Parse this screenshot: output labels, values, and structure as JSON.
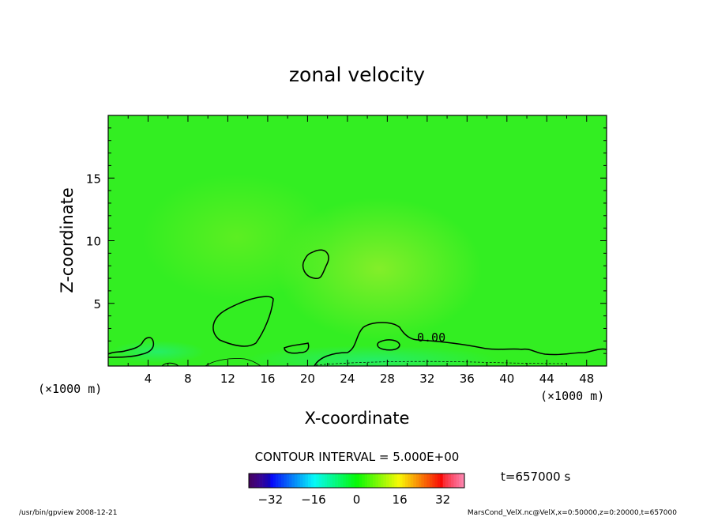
{
  "chart_data": {
    "type": "heatmap",
    "title": "zonal velocity",
    "xlabel": "X-coordinate",
    "ylabel": "Z-coordinate",
    "x_unit": "(×1000 m)",
    "y_unit": "(×1000 m)",
    "xlim": [
      0,
      50
    ],
    "ylim": [
      0,
      20
    ],
    "x_ticks": [
      4,
      8,
      12,
      16,
      20,
      24,
      28,
      32,
      36,
      40,
      44,
      48
    ],
    "y_ticks": [
      5,
      10,
      15
    ],
    "contour_interval": "CONTOUR INTERVAL = 5.000E+00",
    "contour_label": "0.00",
    "time_label": "t=657000 s",
    "colorbar": {
      "range": [
        -40,
        40
      ],
      "ticks": [
        -32,
        -16,
        0,
        16,
        32
      ],
      "colormap": "rainbow"
    },
    "background_value": 2,
    "colors": {
      "field_base": "#33ee22",
      "field_warm": "#88ee22",
      "field_cool": "#22ee66"
    }
  },
  "footer": {
    "left": "/usr/bin/gpview   2008-12-21",
    "right": "MarsCond_VelX.nc@VelX,x=0:50000,z=0:20000,t=657000"
  }
}
